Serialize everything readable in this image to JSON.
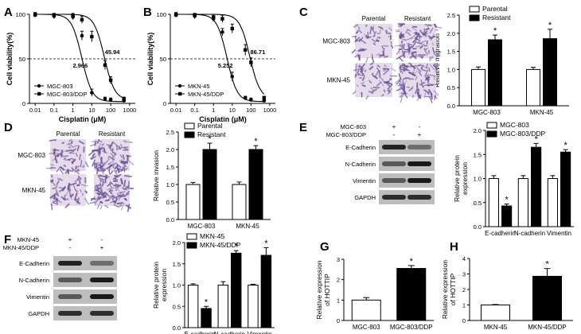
{
  "panels": {
    "A": "A",
    "B": "B",
    "C": "C",
    "D": "D",
    "E": "E",
    "F": "F",
    "G": "G",
    "H": "H"
  },
  "chart_data": [
    {
      "id": "A",
      "type": "line",
      "xlabel": "Cisplatin (μM)",
      "ylabel": "Cell viability(%)",
      "xscale": "log",
      "xlim": [
        0.005,
        2000
      ],
      "ylim": [
        0,
        100
      ],
      "xticks": [
        0.01,
        0.1,
        1,
        10,
        100,
        1000
      ],
      "xtick_labels": [
        "0.01",
        "0.1",
        "1",
        "10",
        "100",
        "1000"
      ],
      "yticks": [
        0,
        50,
        100
      ],
      "reference_line": 50,
      "x": [
        0.01,
        0.1,
        1,
        3,
        10,
        50,
        100,
        500
      ],
      "series": [
        {
          "name": "MGC-803",
          "marker": "circle",
          "ic50": 2.966,
          "ic50_label": "2.966",
          "values": [
            99,
            98,
            97,
            76,
            12,
            5,
            4,
            3
          ],
          "errors": [
            2,
            3,
            3,
            5,
            4,
            2,
            2,
            1
          ]
        },
        {
          "name": "MGC-803/DDP",
          "marker": "square",
          "ic50": 45.94,
          "ic50_label": "45.94",
          "values": [
            100,
            99,
            98,
            94,
            75,
            43,
            26,
            5
          ],
          "errors": [
            2,
            2,
            3,
            4,
            6,
            5,
            4,
            2
          ]
        }
      ],
      "legend": "bottom-left"
    },
    {
      "id": "B",
      "type": "line",
      "xlabel": "Cisplatin (μM)",
      "ylabel": "Cell viability(%)",
      "xscale": "log",
      "xlim": [
        0.005,
        2000
      ],
      "ylim": [
        0,
        100
      ],
      "xticks": [
        0.01,
        0.1,
        1,
        10,
        100,
        1000
      ],
      "xtick_labels": [
        "0.01",
        "0.1",
        "1",
        "10",
        "100",
        "1000"
      ],
      "yticks": [
        0,
        50,
        100
      ],
      "reference_line": 50,
      "x": [
        0.01,
        0.1,
        1,
        3,
        10,
        50,
        100,
        500
      ],
      "series": [
        {
          "name": "MKN-45",
          "marker": "circle",
          "ic50": 5.252,
          "ic50_label": "5.252",
          "values": [
            99,
            98,
            95,
            80,
            30,
            6,
            4,
            3
          ],
          "errors": [
            2,
            3,
            3,
            4,
            5,
            2,
            2,
            1
          ]
        },
        {
          "name": "MKN-45/DDP",
          "marker": "square",
          "ic50": 86.71,
          "ic50_label": "86.71",
          "values": [
            100,
            99,
            97,
            95,
            84,
            60,
            46,
            6
          ],
          "errors": [
            2,
            2,
            3,
            4,
            5,
            6,
            5,
            2
          ]
        }
      ],
      "legend": "bottom-left"
    },
    {
      "id": "C",
      "type": "bar",
      "ylabel": "Relative migration",
      "categories": [
        "MGC-803",
        "MKN-45"
      ],
      "ylim": [
        0,
        2.5
      ],
      "yticks": [
        0,
        0.5,
        1.0,
        1.5,
        2.0,
        2.5
      ],
      "ytick_labels": [
        "0.0",
        "0.5",
        "1.0",
        "1.5",
        "2.0",
        "2.5"
      ],
      "series": [
        {
          "name": "Parental",
          "fill": "#ffffff",
          "values": [
            1.0,
            1.0
          ],
          "errors": [
            0.07,
            0.06
          ],
          "stars": [
            "",
            ""
          ]
        },
        {
          "name": "Resistant",
          "fill": "#000000",
          "values": [
            1.82,
            1.85
          ],
          "errors": [
            0.13,
            0.26
          ],
          "stars": [
            "*",
            "*"
          ]
        }
      ],
      "legend": "top-left",
      "star_label": "*"
    },
    {
      "id": "D",
      "type": "bar",
      "ylabel": "Relative invasion",
      "categories": [
        "MGC-803",
        "MKN-45"
      ],
      "ylim": [
        0,
        2.5
      ],
      "yticks": [
        0,
        0.5,
        1.0,
        1.5,
        2.0,
        2.5
      ],
      "ytick_labels": [
        "0.0",
        "0.5",
        "1.0",
        "1.5",
        "2.0",
        "2.5"
      ],
      "series": [
        {
          "name": "Parental",
          "fill": "#ffffff",
          "values": [
            1.0,
            1.0
          ],
          "errors": [
            0.06,
            0.07
          ],
          "stars": [
            "",
            ""
          ]
        },
        {
          "name": "Resistant",
          "fill": "#000000",
          "values": [
            2.0,
            2.0
          ],
          "errors": [
            0.18,
            0.11
          ],
          "stars": [
            "*",
            "*"
          ]
        }
      ],
      "legend": "top-left",
      "star_label": "*"
    },
    {
      "id": "E",
      "type": "bar",
      "ylabel": "Relative protein expression",
      "categories": [
        "E-cadherin",
        "N-cadherin",
        "Vimentin"
      ],
      "ylim": [
        0,
        2.0
      ],
      "yticks": [
        0,
        0.5,
        1.0,
        1.5,
        2.0
      ],
      "ytick_labels": [
        "0.0",
        "0.5",
        "1.0",
        "1.5",
        "2.0"
      ],
      "series": [
        {
          "name": "MGC-803",
          "fill": "#ffffff",
          "values": [
            1.0,
            1.0,
            1.0
          ],
          "errors": [
            0.06,
            0.06,
            0.06
          ],
          "stars": [
            "",
            "",
            ""
          ]
        },
        {
          "name": "MGC-803/DDP",
          "fill": "#000000",
          "values": [
            0.43,
            1.65,
            1.55
          ],
          "errors": [
            0.04,
            0.08,
            0.05
          ],
          "stars": [
            "*",
            "*",
            "*"
          ]
        }
      ],
      "legend": "top-left",
      "star_label": "*"
    },
    {
      "id": "F",
      "type": "bar",
      "ylabel": "Relative protein expression",
      "categories": [
        "E-cadherin",
        "N-cadherin",
        "Vimentin"
      ],
      "ylim": [
        0,
        2.0
      ],
      "yticks": [
        0,
        0.5,
        1.0,
        1.5,
        2.0
      ],
      "ytick_labels": [
        "0.0",
        "0.5",
        "1.0",
        "1.5",
        "2.0"
      ],
      "series": [
        {
          "name": "MKN-45",
          "fill": "#ffffff",
          "values": [
            1.0,
            1.0,
            1.0
          ],
          "errors": [
            0.03,
            0.08,
            0.02
          ],
          "stars": [
            "",
            "",
            ""
          ]
        },
        {
          "name": "MKN-45/DDP",
          "fill": "#000000",
          "values": [
            0.45,
            1.75,
            1.7
          ],
          "errors": [
            0.05,
            0.06,
            0.18
          ],
          "stars": [
            "*",
            "*",
            "*"
          ]
        }
      ],
      "legend": "top-left",
      "star_label": "*"
    },
    {
      "id": "G",
      "type": "bar",
      "ylabel": "Relative expression of HOTTIP",
      "categories": [
        "MGC-803",
        "MGC-803/DDP"
      ],
      "ylim": [
        0,
        3
      ],
      "yticks": [
        0,
        1,
        2,
        3
      ],
      "ytick_labels": [
        "0",
        "1",
        "2",
        "3"
      ],
      "fills": [
        "#ffffff",
        "#000000"
      ],
      "values": [
        1.0,
        2.55
      ],
      "errors": [
        0.12,
        0.14
      ],
      "stars": [
        "",
        "*"
      ],
      "star_label": "*"
    },
    {
      "id": "H",
      "type": "bar",
      "ylabel": "Relative expression of HOTTIP",
      "categories": [
        "MKN-45",
        "MKN-45/DDP"
      ],
      "ylim": [
        0,
        4
      ],
      "yticks": [
        0,
        1,
        2,
        3,
        4
      ],
      "ytick_labels": [
        "0",
        "1",
        "2",
        "3",
        "4"
      ],
      "fills": [
        "#ffffff",
        "#000000"
      ],
      "values": [
        1.0,
        2.85
      ],
      "errors": [
        0.03,
        0.5
      ],
      "stars": [
        "",
        "*"
      ],
      "star_label": "*"
    }
  ],
  "micrographs": {
    "C": {
      "col_labels": [
        "Parental",
        "Resistant"
      ],
      "row_labels": [
        "MGC-803",
        "MKN-45"
      ]
    },
    "D": {
      "col_labels": [
        "Parental",
        "Resistant"
      ],
      "row_labels": [
        "MGC-803",
        "MKN-45"
      ]
    }
  },
  "blots": {
    "E": {
      "conditions": [
        {
          "label": "MGC-803",
          "marks": [
            "+",
            "-"
          ]
        },
        {
          "label": "MGC-803/DDP",
          "marks": [
            "-",
            "+"
          ]
        }
      ],
      "bands": [
        {
          "label": "E-Cadherin",
          "intensity": [
            0.9,
            0.45
          ]
        },
        {
          "label": "N-Cadherin",
          "intensity": [
            0.6,
            0.95
          ]
        },
        {
          "label": "Vimentin",
          "intensity": [
            0.6,
            0.95
          ]
        },
        {
          "label": "GAPDH",
          "intensity": [
            0.85,
            0.85
          ]
        }
      ]
    },
    "F": {
      "conditions": [
        {
          "label": "MKN-45",
          "marks": [
            "+",
            "-"
          ]
        },
        {
          "label": "MKN-45/DDP",
          "marks": [
            "-",
            "+"
          ]
        }
      ],
      "bands": [
        {
          "label": "E-Cadherin",
          "intensity": [
            0.9,
            0.45
          ]
        },
        {
          "label": "N-Cadherin",
          "intensity": [
            0.6,
            0.95
          ]
        },
        {
          "label": "Vimentin",
          "intensity": [
            0.6,
            0.95
          ]
        },
        {
          "label": "GAPDH",
          "intensity": [
            0.85,
            0.85
          ]
        }
      ]
    }
  },
  "colors": {
    "ink": "#000000",
    "blot_bg": "#bdbdbd",
    "micro_bg": "#e4dcea",
    "micro_cell": "#6e4f97"
  }
}
